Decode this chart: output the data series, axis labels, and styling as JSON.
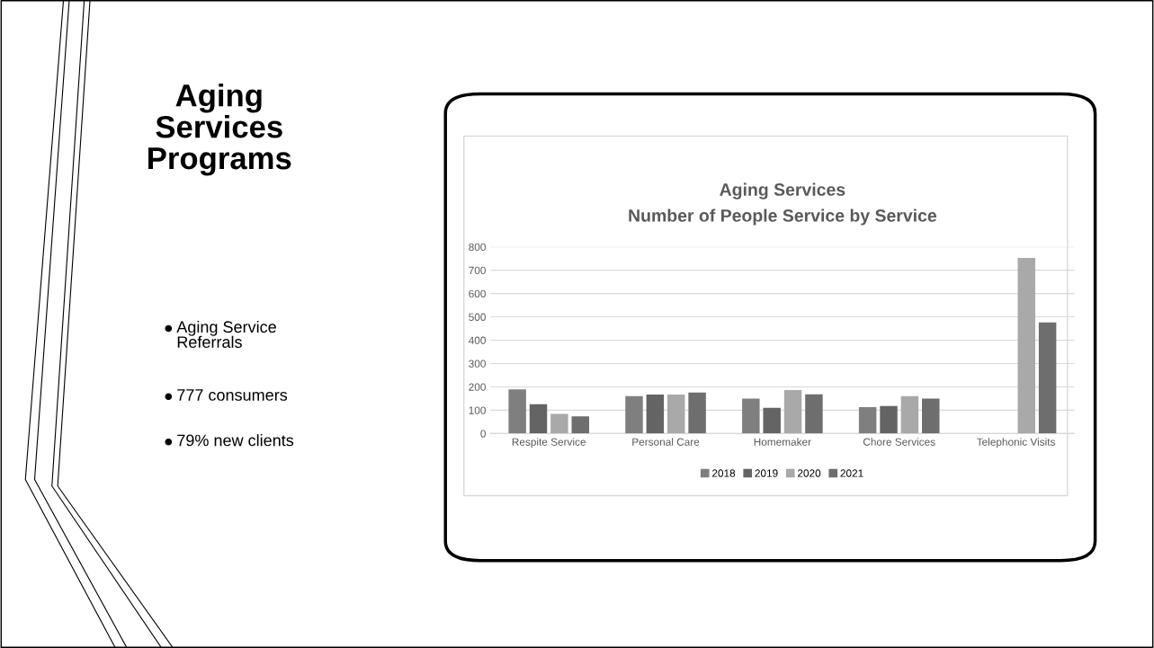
{
  "chart_data": {
    "type": "bar",
    "title": "Aging Services",
    "subtitle": "Number of People Service by Service",
    "categories": [
      "Respite Service",
      "Personal Care",
      "Homemaker",
      "Chore Services",
      "Telephonic Visits"
    ],
    "series": [
      {
        "name": "2018",
        "color": "#7f7f7f",
        "values": [
          189,
          160,
          150,
          113,
          null
        ]
      },
      {
        "name": "2019",
        "color": "#646464",
        "values": [
          126,
          167,
          110,
          118,
          null
        ]
      },
      {
        "name": "2020",
        "color": "#a9a9a9",
        "values": [
          84,
          167,
          186,
          160,
          753
        ]
      },
      {
        "name": "2021",
        "color": "#6e6e6e",
        "values": [
          74,
          176,
          168,
          150,
          476
        ]
      }
    ],
    "ylim": [
      0,
      800
    ],
    "yticks": [
      0,
      100,
      200,
      300,
      400,
      500,
      600,
      700,
      800
    ],
    "grid": "y",
    "legend": "bottom",
    "annotations": [
      "Aging\nServices\nPrograms",
      "Aging Service\nReferrals",
      "777 consumers",
      "79% new clients"
    ]
  }
}
